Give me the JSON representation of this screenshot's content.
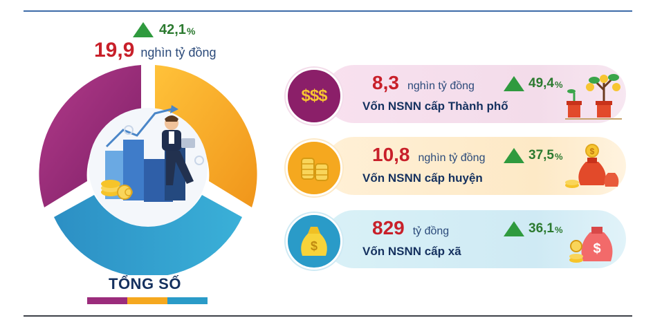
{
  "total": {
    "value": "19,9",
    "unit": "nghìn tỷ đồng",
    "growth": "42,1",
    "growth_sign": "%",
    "label": "TỔNG SỐ"
  },
  "items": [
    {
      "value": "8,3",
      "unit": "nghìn tỷ đồng",
      "growth": "49,4",
      "growth_sign": "%",
      "label": "Vốn NSNN cấp Thành phố",
      "icon_text": "$$$"
    },
    {
      "value": "10,8",
      "unit": "nghìn tỷ đồng",
      "growth": "37,5",
      "growth_sign": "%",
      "label": "Vốn NSNN cấp huyện"
    },
    {
      "value": "829",
      "unit": "tỷ đồng",
      "growth": "36,1",
      "growth_sign": "%",
      "label": "Vốn NSNN cấp xã"
    }
  ],
  "colors": {
    "purple": "#9b2c7c",
    "orange": "#f5a81f",
    "blue": "#2a9bc8",
    "green": "#2f9a3e",
    "red": "#c8202a"
  },
  "icons": [
    "up-triangle-icon",
    "money-stack-icon",
    "coins-stack-icon",
    "money-bag-icon",
    "money-tree-icon",
    "businessman-chart-illustration"
  ]
}
